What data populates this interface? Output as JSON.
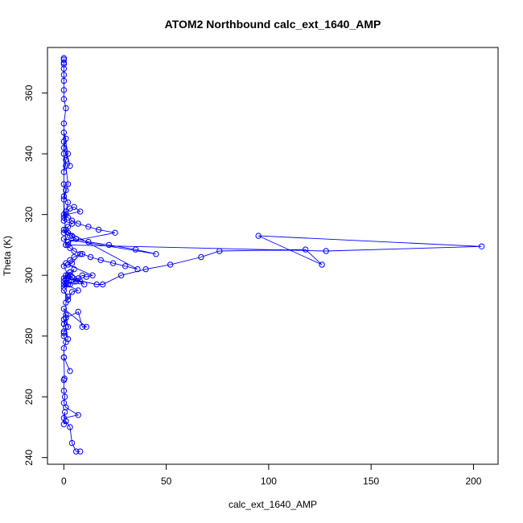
{
  "chart_data": {
    "type": "line",
    "title": "ATOM2 Northbound calc_ext_1640_AMP",
    "xlabel": "calc_ext_1640_AMP",
    "ylabel": "Theta (K)",
    "xlim": [
      -8,
      212
    ],
    "ylim": [
      237.8,
      375
    ],
    "xticks": [
      0,
      50,
      100,
      150,
      200
    ],
    "yticks": [
      240,
      260,
      280,
      300,
      320,
      340,
      360
    ],
    "marker": "open-circle",
    "grid": false,
    "legend": "none",
    "colors": {
      "series": "#0000ff",
      "axis": "#000000"
    },
    "series": [
      {
        "x": [
          8,
          6,
          4,
          3,
          1,
          0,
          0.5,
          0,
          7,
          1,
          0,
          0.5,
          0,
          0,
          0.3,
          0,
          3,
          0,
          0,
          1,
          0,
          0,
          0,
          1,
          2,
          0,
          0,
          1,
          1,
          2,
          0,
          11,
          9,
          7,
          1,
          1,
          2,
          0,
          2,
          4,
          7,
          1,
          0,
          4,
          1,
          3,
          8,
          0,
          5,
          0,
          2,
          1,
          3,
          6,
          0,
          2,
          10,
          3,
          2,
          0,
          1,
          3,
          5,
          8,
          4,
          2,
          14,
          11,
          9,
          7,
          5,
          3,
          2,
          16,
          19,
          28,
          40,
          52,
          67,
          76,
          118,
          126,
          95,
          204,
          128,
          2,
          0,
          45,
          35,
          22,
          12,
          6,
          4,
          2,
          0,
          36,
          30,
          24,
          18,
          13,
          9,
          5,
          3,
          1,
          2,
          25,
          17,
          12,
          7,
          4,
          2,
          0,
          3,
          5,
          8,
          1,
          0,
          4,
          2,
          1,
          0,
          3,
          6,
          2,
          1,
          0,
          2,
          1,
          0,
          0,
          3,
          0,
          1,
          0,
          2,
          1,
          0,
          0,
          1,
          0,
          2,
          1,
          0,
          0,
          1,
          0,
          0,
          0,
          0,
          0,
          0,
          0,
          0,
          0
        ],
        "y": [
          242,
          242,
          244.8,
          250,
          252,
          251,
          255,
          253,
          254,
          256.5,
          258,
          260,
          262,
          265.5,
          266,
          273,
          268.5,
          273,
          276,
          278,
          280,
          281.5,
          281,
          283,
          279,
          285.5,
          284,
          286,
          287,
          283,
          289,
          283,
          283,
          288,
          286,
          291,
          293,
          295,
          292,
          294.5,
          295,
          297,
          298,
          299.5,
          300,
          301,
          298,
          299,
          302,
          296,
          297,
          299,
          300,
          298,
          297,
          300,
          297,
          301,
          300,
          303,
          304,
          305,
          306,
          307,
          304,
          303.5,
          300,
          299.5,
          300,
          299,
          298,
          297,
          299,
          297,
          297,
          300,
          302,
          303.5,
          306,
          308,
          308.5,
          303.5,
          313,
          309.5,
          308,
          310,
          312,
          307,
          308.5,
          310,
          311,
          312,
          313,
          314,
          315,
          302,
          303,
          304,
          305,
          306,
          307,
          308,
          309,
          310,
          311,
          314,
          315,
          316,
          317,
          318,
          319,
          320,
          322,
          322.5,
          321,
          320,
          318,
          317,
          316,
          315,
          314,
          313,
          312,
          311,
          310,
          325,
          330,
          336,
          340,
          344,
          336,
          342,
          345,
          347,
          340,
          338,
          334,
          330,
          328,
          326,
          324,
          321,
          319,
          350,
          355,
          358,
          361,
          364,
          366,
          368,
          369.5,
          370,
          371,
          371.5
        ]
      }
    ]
  }
}
